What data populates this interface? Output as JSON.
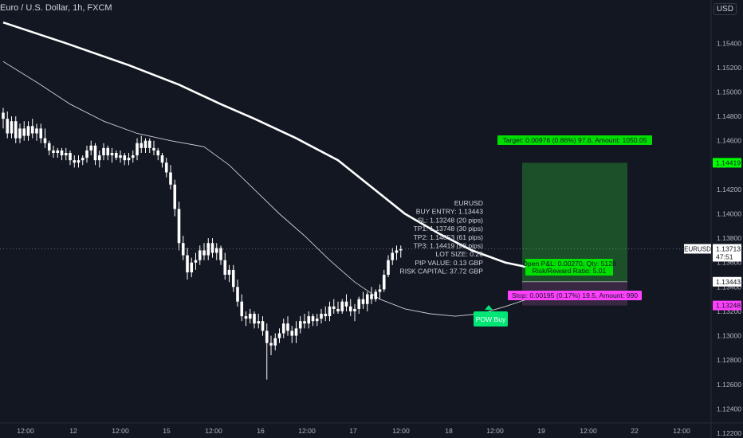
{
  "header": {
    "title": "Euro / U.S. Dollar, 1h, FXCM",
    "currency": "USD"
  },
  "colors": {
    "background": "#131722",
    "text": "#d1d4dc",
    "candle_up": "#26a69a",
    "candle_down": "#ffffff",
    "target_zone": "#1b5e20",
    "stop_zone": "#3a2540",
    "target_label": "#00ff00",
    "stop_label": "#ff40ff",
    "pow_buy": "#00e676"
  },
  "chart_data": {
    "type": "candlestick",
    "symbol": "EURUSD",
    "ylim": [
      1.122,
      1.1565
    ],
    "y_ticks": [
      "1.15400",
      "1.15200",
      "1.15000",
      "1.14800",
      "1.14600",
      "1.14400",
      "1.14200",
      "1.14000",
      "1.13800",
      "1.13600",
      "1.13400",
      "1.13200",
      "1.13000",
      "1.12800",
      "1.12600",
      "1.12400",
      "1.12200"
    ],
    "x_ticks": [
      "12:00",
      "12",
      "12:00",
      "15",
      "12:00",
      "16",
      "12:00",
      "17",
      "12:00",
      "18",
      "12:00",
      "19",
      "12:00",
      "22",
      "12:00"
    ],
    "price_markers": [
      {
        "label": "1.14419",
        "value": 1.14419,
        "color": "#00ff00"
      },
      {
        "label": "1.13713",
        "value": 1.13713,
        "color": "#ffffff",
        "sub": "47:51"
      },
      {
        "label": "1.13443",
        "value": 1.13443,
        "color": "#ffffff"
      },
      {
        "label": "1.13248",
        "value": 1.13248,
        "color": "#ff40ff"
      }
    ],
    "symbol_label": "EURUSD",
    "last_price": 1.13713,
    "candles": [
      [
        1.1483,
        1.1487,
        1.147,
        1.1478
      ],
      [
        1.1478,
        1.1484,
        1.1462,
        1.1466
      ],
      [
        1.1466,
        1.148,
        1.1462,
        1.1476
      ],
      [
        1.1476,
        1.148,
        1.1458,
        1.1462
      ],
      [
        1.1462,
        1.1474,
        1.1458,
        1.147
      ],
      [
        1.147,
        1.1476,
        1.146,
        1.1464
      ],
      [
        1.1464,
        1.1476,
        1.146,
        1.1472
      ],
      [
        1.1472,
        1.1478,
        1.1462,
        1.1466
      ],
      [
        1.1466,
        1.1474,
        1.146,
        1.147
      ],
      [
        1.147,
        1.1474,
        1.1458,
        1.1462
      ],
      [
        1.1462,
        1.147,
        1.1454,
        1.1458
      ],
      [
        1.1458,
        1.146,
        1.1448,
        1.1452
      ],
      [
        1.1452,
        1.1456,
        1.1446,
        1.145
      ],
      [
        1.145,
        1.1454,
        1.1446,
        1.1452
      ],
      [
        1.1452,
        1.1454,
        1.1444,
        1.1448
      ],
      [
        1.1448,
        1.1454,
        1.1444,
        1.145
      ],
      [
        1.145,
        1.1452,
        1.144,
        1.1444
      ],
      [
        1.1444,
        1.1448,
        1.1438,
        1.1442
      ],
      [
        1.1442,
        1.1448,
        1.1438,
        1.1444
      ],
      [
        1.1444,
        1.1448,
        1.144,
        1.1446
      ],
      [
        1.1446,
        1.1456,
        1.1442,
        1.1452
      ],
      [
        1.1452,
        1.146,
        1.1448,
        1.1456
      ],
      [
        1.1456,
        1.1458,
        1.144,
        1.1444
      ],
      [
        1.1444,
        1.1452,
        1.1438,
        1.1448
      ],
      [
        1.1448,
        1.1458,
        1.1444,
        1.1454
      ],
      [
        1.1454,
        1.1456,
        1.1444,
        1.1448
      ],
      [
        1.1448,
        1.1454,
        1.1442,
        1.145
      ],
      [
        1.145,
        1.1452,
        1.1444,
        1.1446
      ],
      [
        1.1446,
        1.1452,
        1.1442,
        1.1448
      ],
      [
        1.1448,
        1.145,
        1.144,
        1.1444
      ],
      [
        1.1444,
        1.145,
        1.144,
        1.1446
      ],
      [
        1.1446,
        1.1452,
        1.1442,
        1.1448
      ],
      [
        1.1448,
        1.1462,
        1.1444,
        1.1458
      ],
      [
        1.1458,
        1.1464,
        1.145,
        1.1454
      ],
      [
        1.1454,
        1.1462,
        1.145,
        1.146
      ],
      [
        1.146,
        1.1462,
        1.145,
        1.1454
      ],
      [
        1.1454,
        1.146,
        1.1448,
        1.1452
      ],
      [
        1.1452,
        1.1454,
        1.1444,
        1.1448
      ],
      [
        1.1448,
        1.145,
        1.1438,
        1.1442
      ],
      [
        1.1442,
        1.1446,
        1.143,
        1.1434
      ],
      [
        1.1434,
        1.144,
        1.142,
        1.1424
      ],
      [
        1.1424,
        1.1428,
        1.1398,
        1.1404
      ],
      [
        1.1404,
        1.141,
        1.137,
        1.1376
      ],
      [
        1.1376,
        1.1382,
        1.1362,
        1.1366
      ],
      [
        1.1366,
        1.1372,
        1.1346,
        1.1352
      ],
      [
        1.1352,
        1.1364,
        1.1348,
        1.136
      ],
      [
        1.136,
        1.1368,
        1.1354,
        1.1362
      ],
      [
        1.1362,
        1.1374,
        1.1358,
        1.137
      ],
      [
        1.137,
        1.1376,
        1.1362,
        1.1366
      ],
      [
        1.1366,
        1.138,
        1.1362,
        1.1376
      ],
      [
        1.1376,
        1.138,
        1.1364,
        1.1368
      ],
      [
        1.1368,
        1.1376,
        1.1362,
        1.1372
      ],
      [
        1.1372,
        1.1374,
        1.1358,
        1.1362
      ],
      [
        1.1362,
        1.1368,
        1.1346,
        1.135
      ],
      [
        1.135,
        1.1358,
        1.1344,
        1.1354
      ],
      [
        1.1354,
        1.1358,
        1.1336,
        1.134
      ],
      [
        1.134,
        1.1346,
        1.1324,
        1.1328
      ],
      [
        1.1328,
        1.1334,
        1.1312,
        1.1316
      ],
      [
        1.1316,
        1.132,
        1.1308,
        1.1314
      ],
      [
        1.1314,
        1.1322,
        1.131,
        1.1318
      ],
      [
        1.1318,
        1.132,
        1.1306,
        1.131
      ],
      [
        1.131,
        1.1318,
        1.1306,
        1.1312
      ],
      [
        1.1312,
        1.1316,
        1.13,
        1.1304
      ],
      [
        1.1304,
        1.131,
        1.1264,
        1.1294
      ],
      [
        1.1294,
        1.13,
        1.1284,
        1.1292
      ],
      [
        1.1292,
        1.1302,
        1.1288,
        1.1298
      ],
      [
        1.1298,
        1.1306,
        1.1294,
        1.1302
      ],
      [
        1.1302,
        1.1314,
        1.1298,
        1.131
      ],
      [
        1.131,
        1.1316,
        1.13,
        1.1304
      ],
      [
        1.1304,
        1.1308,
        1.1294,
        1.13
      ],
      [
        1.13,
        1.1312,
        1.1294,
        1.1306
      ],
      [
        1.1306,
        1.1316,
        1.1302,
        1.1312
      ],
      [
        1.1312,
        1.1318,
        1.1306,
        1.131
      ],
      [
        1.131,
        1.132,
        1.1306,
        1.1316
      ],
      [
        1.1316,
        1.1318,
        1.1308,
        1.1312
      ],
      [
        1.1312,
        1.1318,
        1.1308,
        1.1314
      ],
      [
        1.1314,
        1.1322,
        1.131,
        1.1318
      ],
      [
        1.1318,
        1.1324,
        1.1312,
        1.1316
      ],
      [
        1.1316,
        1.1328,
        1.1312,
        1.1324
      ],
      [
        1.1324,
        1.133,
        1.1318,
        1.1322
      ],
      [
        1.1322,
        1.1328,
        1.1318,
        1.132
      ],
      [
        1.132,
        1.133,
        1.1318,
        1.1328
      ],
      [
        1.1328,
        1.1334,
        1.132,
        1.1324
      ],
      [
        1.1324,
        1.133,
        1.1316,
        1.132
      ],
      [
        1.132,
        1.1326,
        1.1312,
        1.1322
      ],
      [
        1.1322,
        1.1332,
        1.1318,
        1.133
      ],
      [
        1.133,
        1.1336,
        1.1322,
        1.1326
      ],
      [
        1.1326,
        1.1336,
        1.132,
        1.1334
      ],
      [
        1.1334,
        1.134,
        1.1326,
        1.133
      ],
      [
        1.133,
        1.1338,
        1.1328,
        1.1336
      ],
      [
        1.1336,
        1.1342,
        1.133,
        1.1338
      ],
      [
        1.1338,
        1.1354,
        1.1336,
        1.135
      ],
      [
        1.135,
        1.1366,
        1.1348,
        1.1362
      ],
      [
        1.1362,
        1.1372,
        1.1358,
        1.1368
      ],
      [
        1.1368,
        1.1374,
        1.1362,
        1.137
      ],
      [
        1.137,
        1.1374,
        1.1364,
        1.1371
      ]
    ],
    "moving_averages": [
      {
        "name": "slow",
        "points": [
          [
            0,
            1.1557
          ],
          [
            15,
            1.154
          ],
          [
            30,
            1.1522
          ],
          [
            42,
            1.1506
          ],
          [
            52,
            1.149
          ],
          [
            60,
            1.1478
          ],
          [
            70,
            1.1462
          ],
          [
            80,
            1.1444
          ],
          [
            88,
            1.1422
          ],
          [
            96,
            1.14
          ],
          [
            104,
            1.1384
          ],
          [
            112,
            1.137
          ],
          [
            120,
            1.136
          ],
          [
            127,
            1.1355
          ]
        ]
      },
      {
        "name": "fast",
        "points": [
          [
            0,
            1.1525
          ],
          [
            8,
            1.1508
          ],
          [
            16,
            1.149
          ],
          [
            24,
            1.1476
          ],
          [
            32,
            1.1466
          ],
          [
            40,
            1.146
          ],
          [
            48,
            1.1455
          ],
          [
            54,
            1.144
          ],
          [
            60,
            1.142
          ],
          [
            66,
            1.14
          ],
          [
            72,
            1.1382
          ],
          [
            78,
            1.1362
          ],
          [
            84,
            1.1344
          ],
          [
            90,
            1.133
          ],
          [
            96,
            1.1322
          ],
          [
            102,
            1.1318
          ],
          [
            108,
            1.1316
          ],
          [
            114,
            1.1318
          ],
          [
            120,
            1.1324
          ],
          [
            127,
            1.1332
          ]
        ]
      }
    ],
    "info_box": [
      "EURUSD",
      "BUY ENTRY: 1.13443",
      "SL: 1.13248 (20 pips)",
      "TP1: 1.13748 (30 pips)",
      "TP2: 1.14053 (61 pips)",
      "TP3: 1.14419 (98 pips)",
      "LOT SIZE: 0.26",
      "PIP VALUE: 0.13 GBP",
      "RISK CAPITAL: 37.72 GBP"
    ],
    "position": {
      "entry": 1.13443,
      "target": 1.14419,
      "stop": 1.13248,
      "target_label": "Target: 0.00976 (0.86%) 97.6, Amount: 1050.05",
      "stop_label": "Stop: 0.00195 (0.17%) 19.5, Amount: 990",
      "pnl_label": "Open P&L: 0.00270, Qty: 5128",
      "rr_label": "Risk/Reward Ratio: 5.01"
    },
    "signal_label": "POW Buy"
  }
}
